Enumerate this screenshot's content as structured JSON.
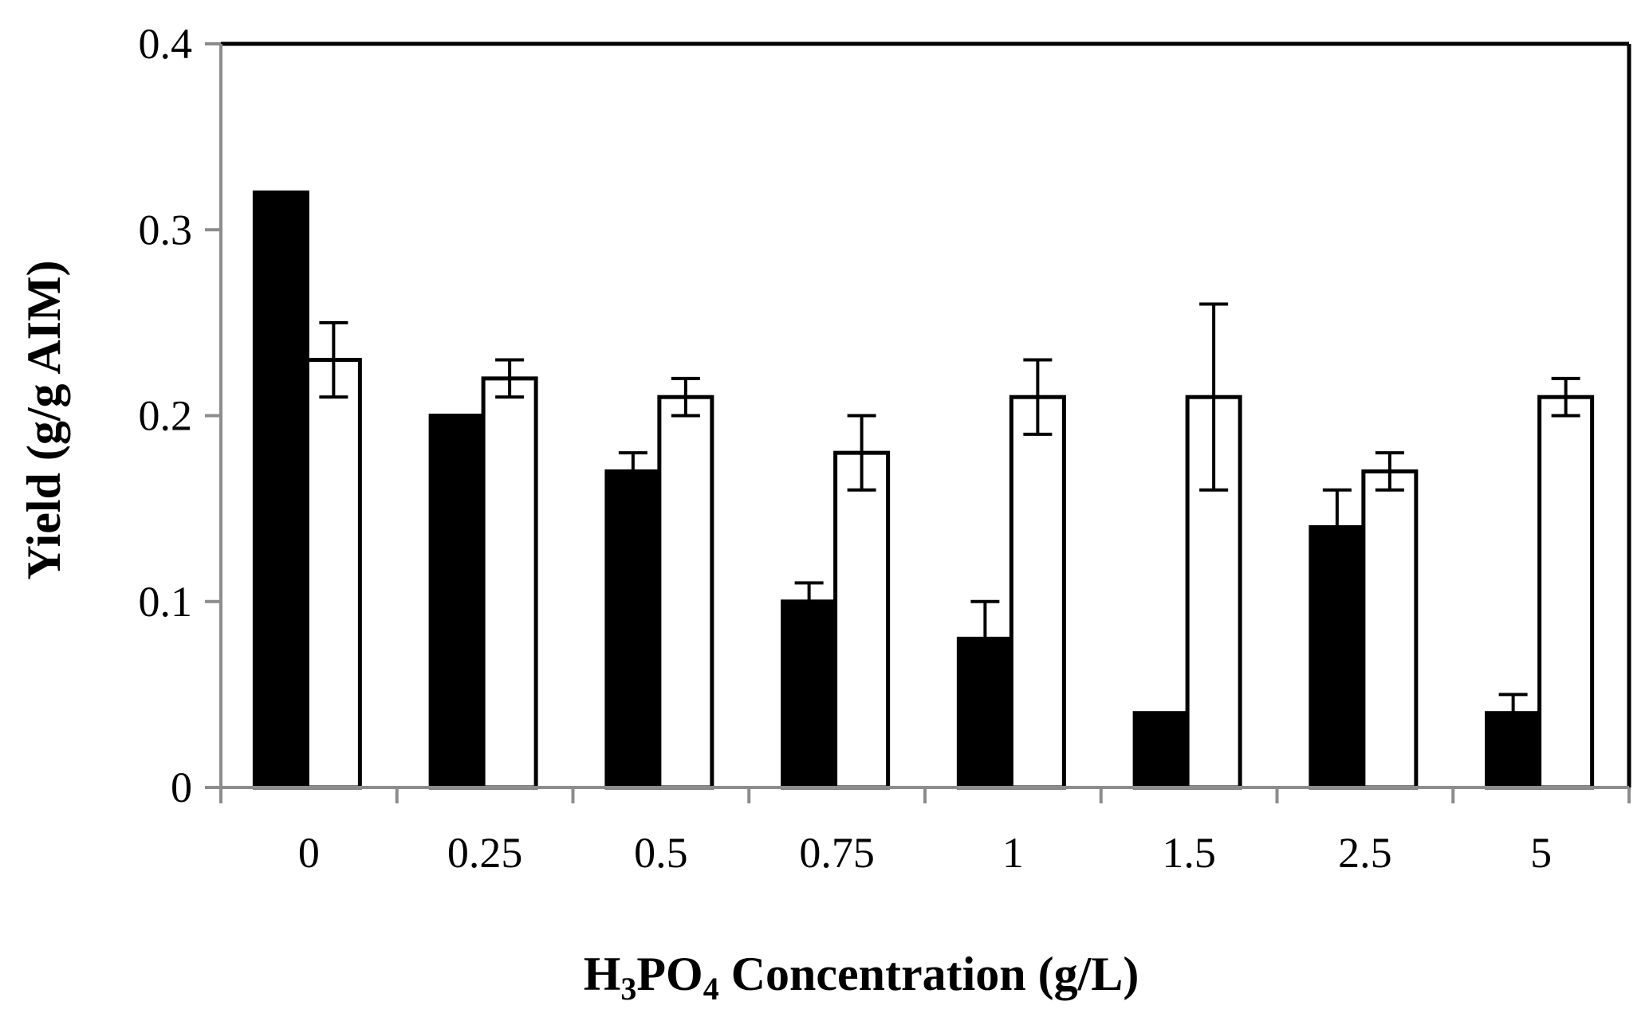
{
  "chart_data": {
    "type": "bar",
    "title": "",
    "xlabel": {
      "prefix": "H",
      "sub1": "3",
      "mid": "PO",
      "sub2": "4",
      "suffix": " Concentration (g/L)"
    },
    "ylabel": "Yield (g/g AIM)",
    "categories": [
      "0",
      "0.25",
      "0.5",
      "0.75",
      "1",
      "1.5",
      "2.5",
      "5"
    ],
    "ylim": [
      0,
      0.4
    ],
    "yticks": [
      0,
      0.1,
      0.2,
      0.3,
      0.4
    ],
    "ytick_labels": [
      "0",
      "0.1",
      "0.2",
      "0.3",
      "0.4"
    ],
    "grid": false,
    "legend": "none",
    "series": [
      {
        "name": "black-series",
        "fill": "#000000",
        "values": [
          0.32,
          0.2,
          0.17,
          0.1,
          0.08,
          0.04,
          0.14,
          0.04
        ],
        "errors": [
          null,
          null,
          0.01,
          0.01,
          0.02,
          null,
          0.02,
          0.01
        ]
      },
      {
        "name": "white-series",
        "fill": "#ffffff",
        "values": [
          0.23,
          0.22,
          0.21,
          0.18,
          0.21,
          0.21,
          0.17,
          0.21
        ],
        "errors": [
          0.02,
          0.01,
          0.01,
          0.02,
          0.02,
          0.05,
          0.01,
          0.01
        ]
      }
    ]
  }
}
